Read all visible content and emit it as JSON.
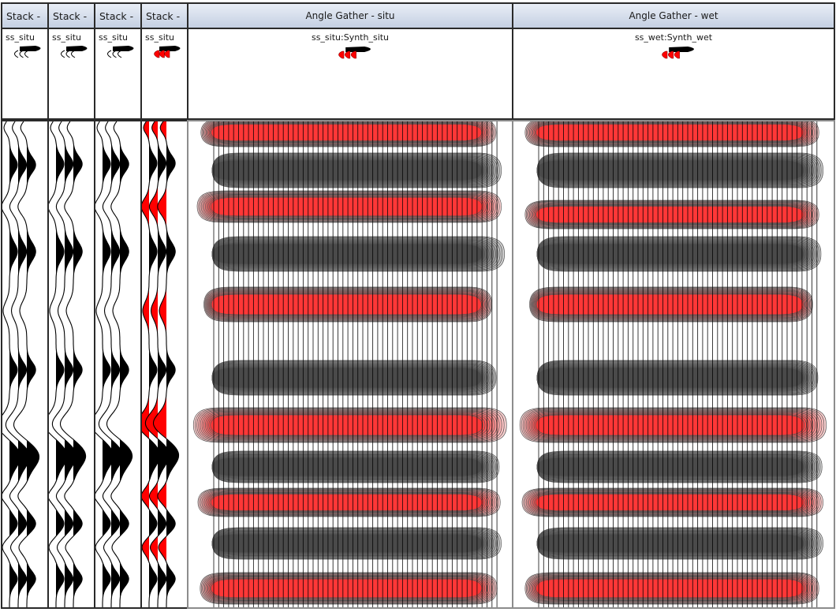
{
  "columns": [
    {
      "id": "stack1",
      "header": "Stack -",
      "track": "ss_situ",
      "kind": "stack",
      "highlight": false
    },
    {
      "id": "stack2",
      "header": "Stack -",
      "track": "ss_situ",
      "kind": "stack",
      "highlight": false
    },
    {
      "id": "stack3",
      "header": "Stack -",
      "track": "ss_situ",
      "kind": "stack",
      "highlight": false
    },
    {
      "id": "stack4",
      "header": "Stack -",
      "track": "ss_situ",
      "kind": "stack",
      "highlight": true
    },
    {
      "id": "gather-situ",
      "header": "Angle Gather - situ",
      "track": "ss_situ:Synth_situ",
      "kind": "gather"
    },
    {
      "id": "gather-wet",
      "header": "Angle Gather - wet",
      "track": "ss_wet:Synth_wet",
      "kind": "gather"
    }
  ],
  "colors": {
    "positive_fill": "#000000",
    "negative_fill": "#ff0000",
    "header_gradient_top": "#e9eef6",
    "header_gradient_bottom": "#c4d0e2",
    "border": "#2a2a2a"
  },
  "icons": {
    "legend_black": "wiggle-legend-black-icon",
    "legend_red": "wiggle-legend-red-icon"
  }
}
